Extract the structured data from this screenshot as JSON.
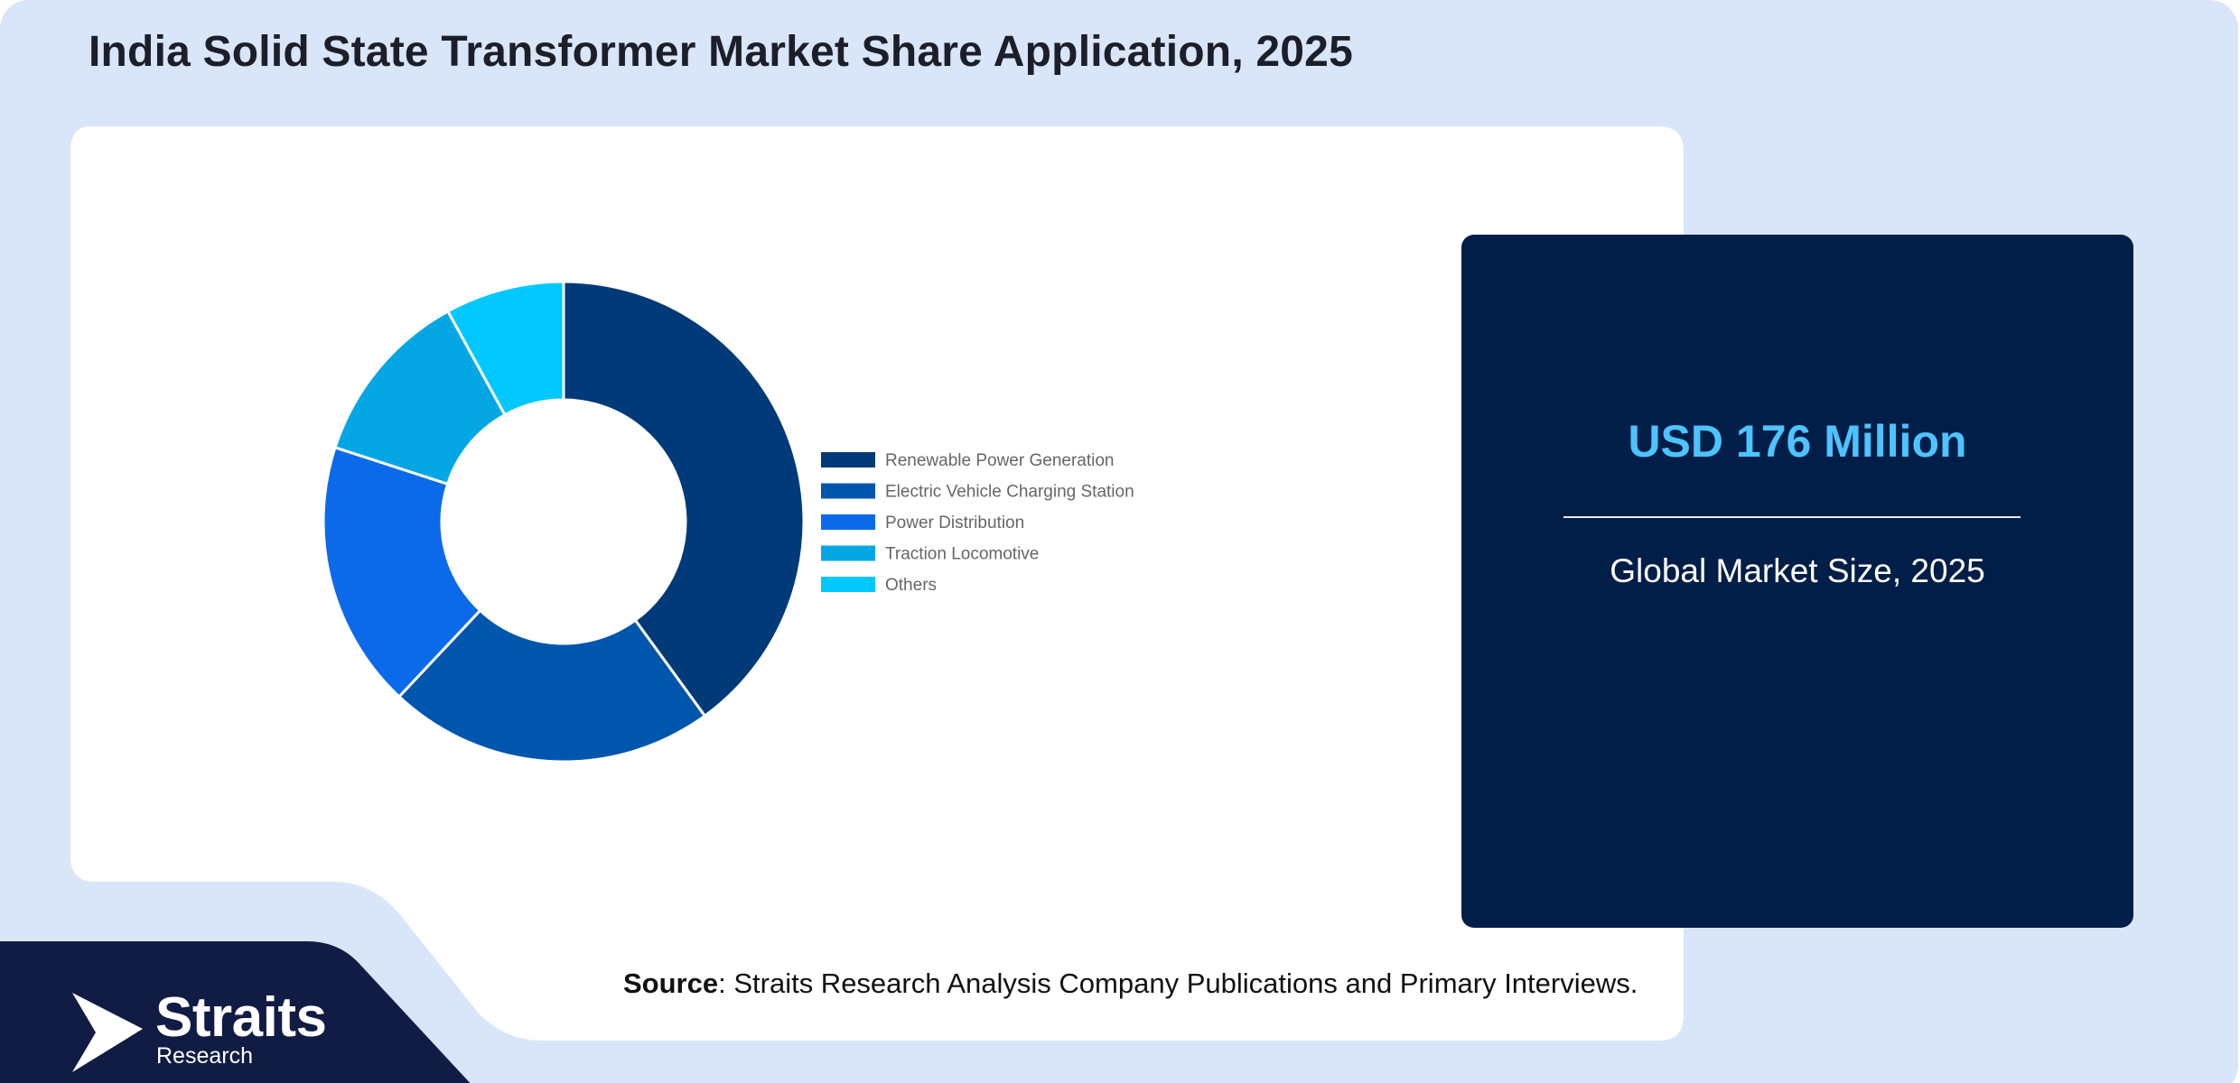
{
  "title": "India Solid State Transformer Market Share Application, 2025",
  "chart_data": {
    "type": "pie",
    "style": "donut",
    "categories": [
      "Renewable Power Generation",
      "Electric Vehicle Charging Station",
      "Power Distribution",
      "Traction Locomotive",
      "Others"
    ],
    "values": [
      40,
      22,
      18,
      12,
      8
    ],
    "colors": [
      "#003a79",
      "#0056ad",
      "#0b6aea",
      "#04a7e4",
      "#00c8ff"
    ],
    "legend_position": "right"
  },
  "stat": {
    "value": "USD 176 Million",
    "label": "Global Market Size, 2025"
  },
  "source": {
    "label": "Source",
    "text": ": Straits Research Analysis Company Publications and Primary Interviews."
  },
  "brand": {
    "name": "Straits",
    "sub": "Research"
  },
  "colors": {
    "background": "#d9e6f9",
    "panel": "#001e48",
    "accent": "#4dc3ff",
    "footer": "#101c44"
  }
}
